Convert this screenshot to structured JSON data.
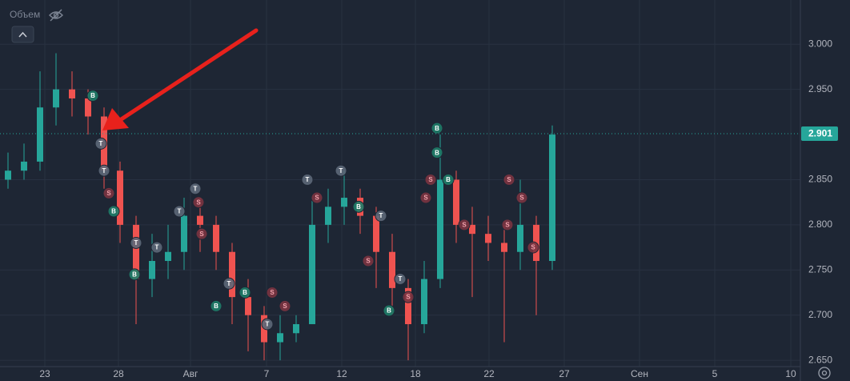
{
  "chart_data": {
    "type": "candlestick",
    "volume_label": "Объем",
    "x": [
      0,
      1,
      2,
      3,
      4,
      5,
      6,
      7,
      8,
      9,
      10,
      11,
      12,
      13,
      14,
      15,
      16,
      17,
      18,
      19,
      20,
      21,
      22,
      23,
      24,
      25,
      26,
      27,
      28,
      29,
      30,
      31,
      32,
      33,
      34
    ],
    "open": [
      2.85,
      2.86,
      2.87,
      2.93,
      2.95,
      2.94,
      2.92,
      2.86,
      2.8,
      2.74,
      2.76,
      2.77,
      2.81,
      2.8,
      2.77,
      2.72,
      2.7,
      2.67,
      2.68,
      2.69,
      2.8,
      2.82,
      2.83,
      2.81,
      2.77,
      2.73,
      2.69,
      2.74,
      2.85,
      2.8,
      2.79,
      2.78,
      2.77,
      2.8,
      2.76
    ],
    "high": [
      2.88,
      2.89,
      2.97,
      2.99,
      2.97,
      2.95,
      2.93,
      2.87,
      2.81,
      2.79,
      2.8,
      2.83,
      2.83,
      2.81,
      2.78,
      2.74,
      2.71,
      2.7,
      2.7,
      2.83,
      2.84,
      2.86,
      2.84,
      2.82,
      2.79,
      2.74,
      2.76,
      2.9,
      2.86,
      2.82,
      2.81,
      2.8,
      2.85,
      2.81,
      2.91
    ],
    "low": [
      2.84,
      2.85,
      2.86,
      2.91,
      2.92,
      2.9,
      2.84,
      2.78,
      2.69,
      2.72,
      2.74,
      2.75,
      2.77,
      2.75,
      2.69,
      2.66,
      2.65,
      2.65,
      2.67,
      2.69,
      2.78,
      2.8,
      2.79,
      2.73,
      2.7,
      2.65,
      2.68,
      2.73,
      2.78,
      2.72,
      2.76,
      2.67,
      2.75,
      2.7,
      2.75
    ],
    "close": [
      2.86,
      2.87,
      2.93,
      2.95,
      2.94,
      2.92,
      2.86,
      2.8,
      2.74,
      2.76,
      2.77,
      2.81,
      2.8,
      2.77,
      2.72,
      2.7,
      2.67,
      2.68,
      2.69,
      2.8,
      2.82,
      2.83,
      2.81,
      2.77,
      2.73,
      2.69,
      2.74,
      2.85,
      2.8,
      2.79,
      2.78,
      2.77,
      2.8,
      2.76,
      2.9
    ],
    "up_color": "#26a69a",
    "down_color": "#ef5350",
    "xlim": [
      -0.5,
      49.5
    ],
    "ylim": [
      2.643,
      3.049
    ],
    "xticks": [
      {
        "value": 2.3,
        "label": "23"
      },
      {
        "value": 6.9,
        "label": "28"
      },
      {
        "value": 11.4,
        "label": "Авг"
      },
      {
        "value": 16.15,
        "label": "7"
      },
      {
        "value": 20.85,
        "label": "12"
      },
      {
        "value": 25.45,
        "label": "18"
      },
      {
        "value": 30.05,
        "label": "22"
      },
      {
        "value": 34.75,
        "label": "27"
      },
      {
        "value": 39.45,
        "label": "Сен"
      },
      {
        "value": 44.15,
        "label": "5"
      },
      {
        "value": 48.9,
        "label": "10"
      }
    ],
    "yticks": [
      {
        "value": 3.0,
        "label": "3.000"
      },
      {
        "value": 2.95,
        "label": "2.950"
      },
      {
        "value": 2.85,
        "label": "2.850"
      },
      {
        "value": 2.8,
        "label": "2.800"
      },
      {
        "value": 2.75,
        "label": "2.750"
      },
      {
        "value": 2.7,
        "label": "2.700"
      },
      {
        "value": 2.65,
        "label": "2.650"
      }
    ],
    "grid": true,
    "last_price": 2.901,
    "last_price_color": "#26a69a",
    "marker_colors": {
      "B": "#1e7d68",
      "S": "#7a3440",
      "T": "#5c6878"
    },
    "markers": [
      {
        "x": 5.3,
        "y": 2.943,
        "label": "B"
      },
      {
        "x": 5.8,
        "y": 2.89,
        "label": "T"
      },
      {
        "x": 6.0,
        "y": 2.86,
        "label": "T"
      },
      {
        "x": 6.3,
        "y": 2.835,
        "label": "S"
      },
      {
        "x": 6.6,
        "y": 2.815,
        "label": "B"
      },
      {
        "x": 8.0,
        "y": 2.78,
        "label": "T"
      },
      {
        "x": 7.9,
        "y": 2.745,
        "label": "B"
      },
      {
        "x": 9.3,
        "y": 2.775,
        "label": "T"
      },
      {
        "x": 10.7,
        "y": 2.815,
        "label": "T"
      },
      {
        "x": 11.7,
        "y": 2.84,
        "label": "T"
      },
      {
        "x": 11.9,
        "y": 2.825,
        "label": "S"
      },
      {
        "x": 12.1,
        "y": 2.79,
        "label": "S"
      },
      {
        "x": 13.8,
        "y": 2.735,
        "label": "T"
      },
      {
        "x": 14.8,
        "y": 2.725,
        "label": "B"
      },
      {
        "x": 13.0,
        "y": 2.71,
        "label": "B"
      },
      {
        "x": 16.5,
        "y": 2.725,
        "label": "S"
      },
      {
        "x": 17.3,
        "y": 2.71,
        "label": "S"
      },
      {
        "x": 16.2,
        "y": 2.69,
        "label": "T"
      },
      {
        "x": 18.7,
        "y": 2.85,
        "label": "T"
      },
      {
        "x": 19.3,
        "y": 2.83,
        "label": "S"
      },
      {
        "x": 20.8,
        "y": 2.86,
        "label": "T"
      },
      {
        "x": 21.9,
        "y": 2.82,
        "label": "B"
      },
      {
        "x": 23.3,
        "y": 2.81,
        "label": "T"
      },
      {
        "x": 22.5,
        "y": 2.76,
        "label": "S"
      },
      {
        "x": 25.0,
        "y": 2.72,
        "label": "S"
      },
      {
        "x": 23.8,
        "y": 2.705,
        "label": "B"
      },
      {
        "x": 24.5,
        "y": 2.74,
        "label": "T"
      },
      {
        "x": 26.8,
        "y": 2.907,
        "label": "B"
      },
      {
        "x": 26.8,
        "y": 2.88,
        "label": "B"
      },
      {
        "x": 26.4,
        "y": 2.85,
        "label": "S"
      },
      {
        "x": 27.5,
        "y": 2.85,
        "label": "B"
      },
      {
        "x": 26.1,
        "y": 2.83,
        "label": "S"
      },
      {
        "x": 28.5,
        "y": 2.8,
        "label": "S"
      },
      {
        "x": 31.3,
        "y": 2.85,
        "label": "S"
      },
      {
        "x": 32.1,
        "y": 2.83,
        "label": "S"
      },
      {
        "x": 32.8,
        "y": 2.775,
        "label": "S"
      },
      {
        "x": 31.2,
        "y": 2.8,
        "label": "S"
      }
    ]
  }
}
